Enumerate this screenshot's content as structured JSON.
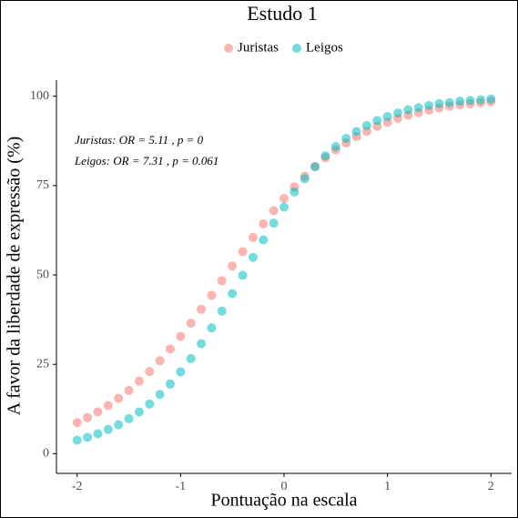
{
  "chart_data": {
    "type": "scatter",
    "title": "Estudo 1",
    "x_label": "Pontuação na escala",
    "y_label": "A favor da liberdade de expressão (%)",
    "annotations": [
      "Juristas: OR = 5.11 , p = 0",
      "Leigos: OR = 7.31 , p = 0.061"
    ],
    "legend_position": "top",
    "x": [
      -2,
      -1.9,
      -1.8,
      -1.7,
      -1.6,
      -1.5,
      -1.4,
      -1.3,
      -1.2,
      -1.1,
      -1,
      -0.9,
      -0.8,
      -0.7,
      -0.6,
      -0.5,
      -0.4,
      -0.3,
      -0.2,
      -0.1,
      0,
      0.1,
      0.2,
      0.3,
      0.4,
      0.5,
      0.6,
      0.7,
      0.8,
      0.9,
      1,
      1.1,
      1.2,
      1.3,
      1.4,
      1.5,
      1.6,
      1.7,
      1.8,
      1.9,
      2
    ],
    "series": [
      {
        "name": "Juristas",
        "color": "#F8766D",
        "values": [
          8.7,
          10.1,
          11.7,
          13.5,
          15.5,
          17.7,
          20.3,
          23.0,
          26.0,
          29.3,
          32.8,
          36.5,
          40.4,
          44.3,
          48.4,
          52.5,
          56.5,
          60.5,
          64.3,
          68.0,
          71.4,
          74.6,
          77.6,
          80.3,
          82.8,
          85.0,
          86.9,
          88.7,
          90.2,
          91.6,
          92.7,
          93.8,
          94.7,
          95.4,
          96.1,
          96.7,
          97.2,
          97.6,
          97.9,
          98.2,
          98.5
        ]
      },
      {
        "name": "Leigos",
        "color": "#00BFC4",
        "values": [
          3.8,
          4.6,
          5.6,
          6.8,
          8.1,
          9.8,
          11.7,
          13.9,
          16.6,
          19.5,
          22.9,
          26.6,
          30.8,
          35.2,
          39.9,
          44.8,
          49.9,
          54.9,
          59.8,
          64.5,
          69.0,
          73.2,
          76.9,
          80.3,
          83.3,
          85.9,
          88.2,
          90.1,
          91.8,
          93.2,
          94.3,
          95.3,
          96.2,
          96.8,
          97.4,
          97.9,
          98.2,
          98.6,
          98.8,
          99.0,
          99.2
        ]
      }
    ],
    "xlim": [
      -2.2,
      2.2
    ],
    "ylim": [
      -5.5,
      104.5
    ],
    "xticks": [
      -2,
      -1,
      0,
      1,
      2
    ],
    "yticks": [
      0,
      25,
      50,
      75,
      100
    ]
  }
}
